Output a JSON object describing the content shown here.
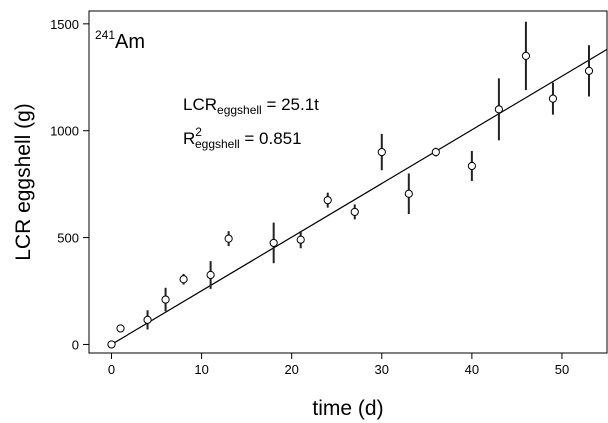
{
  "chart_data": {
    "type": "scatter",
    "panel_label": {
      "superscript": "241",
      "text": "Am"
    },
    "xlabel": "time (d)",
    "ylabel": "LCR eggshell (g)",
    "xlim": [
      -2.5,
      55
    ],
    "ylim": [
      -40,
      1560
    ],
    "x_ticks": [
      0,
      10,
      20,
      30,
      40,
      50
    ],
    "y_ticks": [
      0,
      500,
      1000,
      1500
    ],
    "x_tick_labels": [
      "0",
      "10",
      "20",
      "30",
      "40",
      "50"
    ],
    "y_tick_labels": [
      "0",
      "500",
      "1000",
      "1500"
    ],
    "grid": false,
    "legend": "none",
    "annotation": {
      "line1": {
        "main": "LCR",
        "sub": "eggshell",
        "rest": " = 25.1t"
      },
      "line2": {
        "main": "R",
        "sup": "2",
        "sub": "eggshell",
        "rest": " = 0.851"
      }
    },
    "fit": {
      "slope": 25.1,
      "intercept": 0,
      "x_range": [
        0,
        55
      ]
    },
    "points": [
      {
        "x": 0,
        "y": 0,
        "err": 0
      },
      {
        "x": 1,
        "y": 75,
        "err": 10
      },
      {
        "x": 4,
        "y": 115,
        "err": 45
      },
      {
        "x": 6,
        "y": 210,
        "err": 55
      },
      {
        "x": 8,
        "y": 305,
        "err": 25
      },
      {
        "x": 11,
        "y": 325,
        "err": 65
      },
      {
        "x": 13,
        "y": 495,
        "err": 35
      },
      {
        "x": 18,
        "y": 475,
        "err": 95
      },
      {
        "x": 21,
        "y": 490,
        "err": 40
      },
      {
        "x": 24,
        "y": 675,
        "err": 35
      },
      {
        "x": 27,
        "y": 620,
        "err": 35
      },
      {
        "x": 30,
        "y": 900,
        "err": 85
      },
      {
        "x": 33,
        "y": 705,
        "err": 95
      },
      {
        "x": 36,
        "y": 900,
        "err": 20
      },
      {
        "x": 40,
        "y": 835,
        "err": 70
      },
      {
        "x": 43,
        "y": 1100,
        "err": 145
      },
      {
        "x": 46,
        "y": 1350,
        "err": 160
      },
      {
        "x": 49,
        "y": 1150,
        "err": 75
      },
      {
        "x": 53,
        "y": 1280,
        "err": 120
      }
    ]
  }
}
